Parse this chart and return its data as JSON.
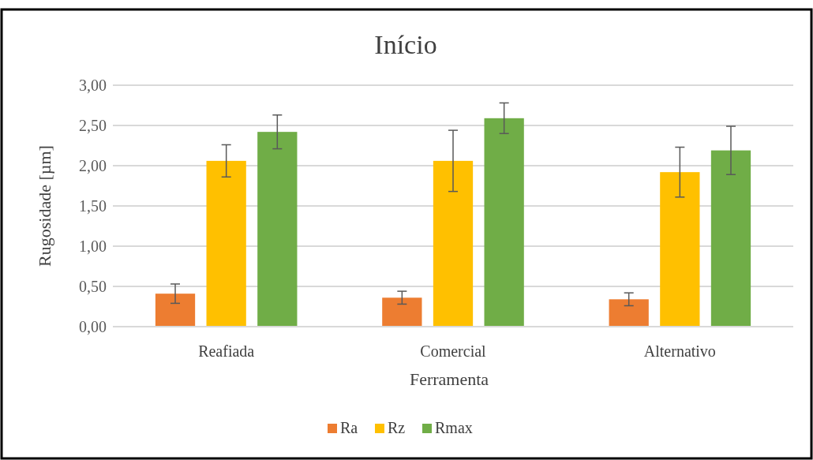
{
  "chart_data": {
    "type": "bar",
    "title": "Início",
    "xlabel": "Ferramenta",
    "ylabel": "Rugosidade [µm]",
    "categories": [
      "Reafiada",
      "Comercial",
      "Alternativo"
    ],
    "series": [
      {
        "name": "Ra",
        "color": "#ed7d31",
        "values": [
          0.41,
          0.36,
          0.34
        ],
        "errors": [
          0.12,
          0.08,
          0.08
        ]
      },
      {
        "name": "Rz",
        "color": "#ffc000",
        "values": [
          2.06,
          2.06,
          1.92
        ],
        "errors": [
          0.2,
          0.38,
          0.31
        ]
      },
      {
        "name": "Rmax",
        "color": "#70ad47",
        "values": [
          2.42,
          2.59,
          2.19
        ],
        "errors": [
          0.21,
          0.19,
          0.3
        ]
      }
    ],
    "ylim": [
      0,
      3
    ],
    "yticks": [
      {
        "value": 0,
        "label": "0,00"
      },
      {
        "value": 0.5,
        "label": "0,50"
      },
      {
        "value": 1,
        "label": "1,00"
      },
      {
        "value": 1.5,
        "label": "1,50"
      },
      {
        "value": 2,
        "label": "2,00"
      },
      {
        "value": 2.5,
        "label": "2,50"
      },
      {
        "value": 3,
        "label": "3,00"
      }
    ],
    "grid": "y",
    "legend": "bottom"
  }
}
